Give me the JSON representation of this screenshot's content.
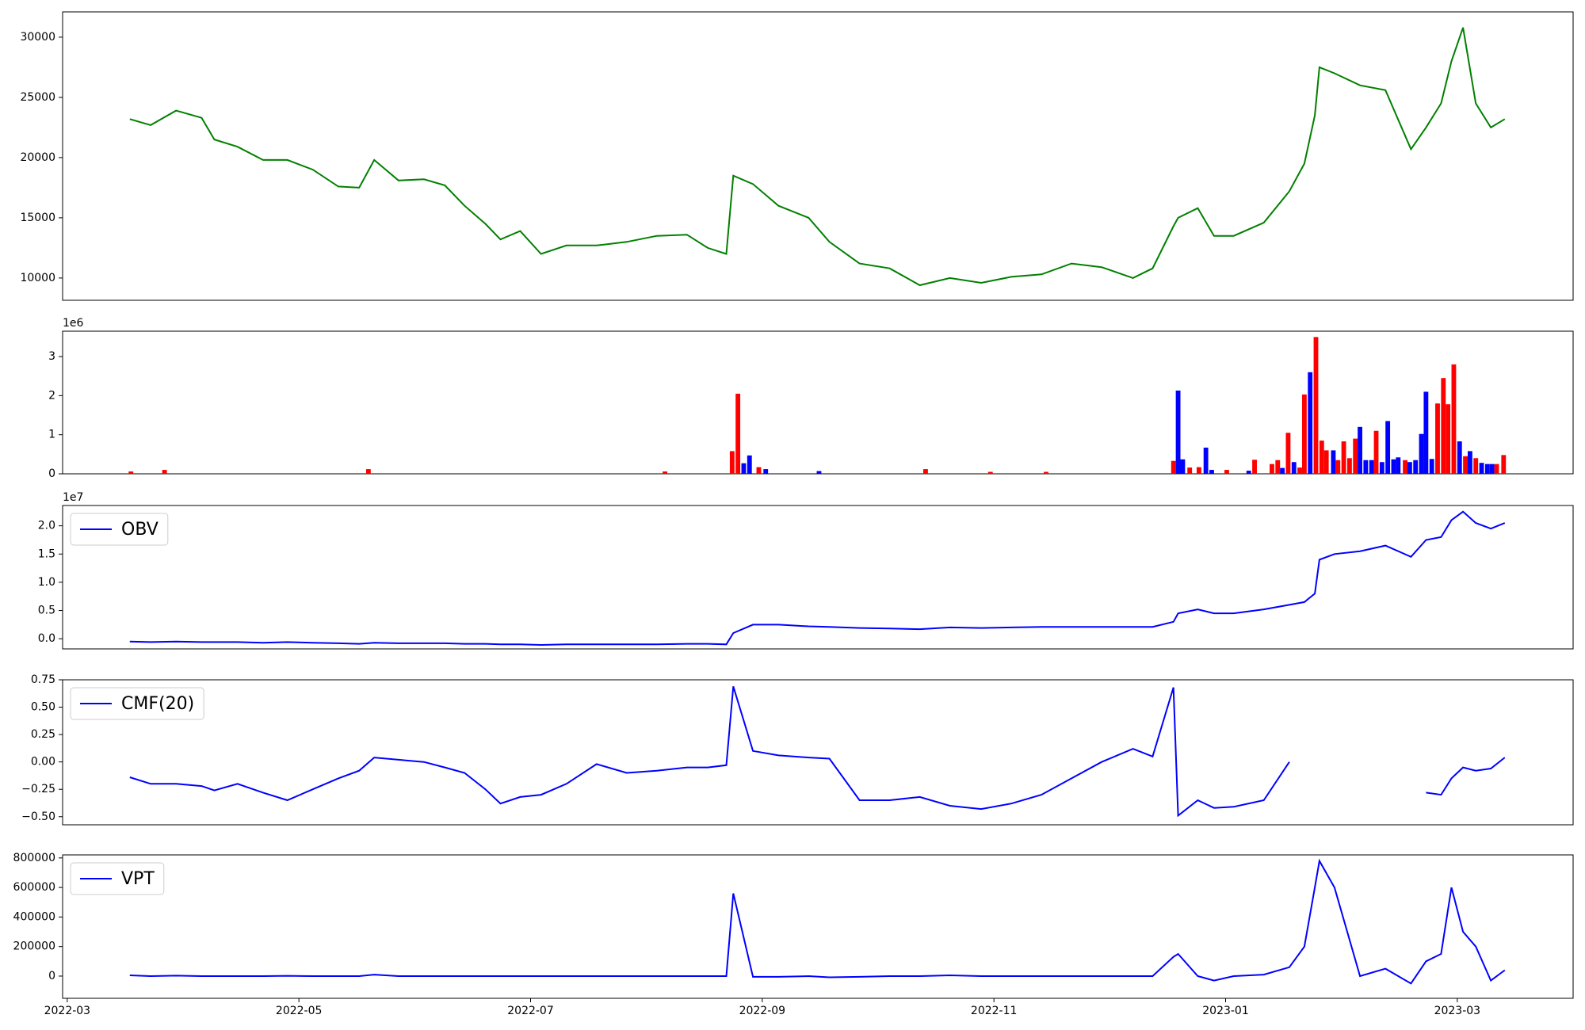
{
  "chart_data": [
    {
      "type": "line",
      "xlim": [
        -0.04,
        13.0
      ],
      "ylim": [
        8150,
        32100
      ],
      "yticks": [
        10000,
        15000,
        20000,
        25000,
        30000
      ],
      "x": [
        0.54,
        0.72,
        0.94,
        1.16,
        1.27,
        1.47,
        1.69,
        1.9,
        2.12,
        2.34,
        2.52,
        2.65,
        2.86,
        3.08,
        3.26,
        3.43,
        3.61,
        3.74,
        3.91,
        4.09,
        4.31,
        4.57,
        4.83,
        5.09,
        5.35,
        5.53,
        5.69,
        5.75,
        5.92,
        6.14,
        6.4,
        6.58,
        6.84,
        7.1,
        7.36,
        7.62,
        7.89,
        8.15,
        8.41,
        8.67,
        8.93,
        9.2,
        9.37,
        9.55,
        9.59,
        9.76,
        9.9,
        10.07,
        10.33,
        10.55,
        10.68,
        10.77,
        10.81,
        10.94,
        11.16,
        11.38,
        11.6,
        11.73,
        11.86,
        11.95,
        12.05,
        12.16,
        12.29,
        12.41
      ],
      "series": [
        {
          "color": "#008000",
          "values": [
            23200,
            22700,
            23900,
            23300,
            21500,
            20900,
            19800,
            19800,
            19000,
            17600,
            17500,
            19800,
            18100,
            18200,
            17700,
            16000,
            14500,
            13200,
            13900,
            12000,
            12700,
            12700,
            13000,
            13500,
            13600,
            12500,
            12000,
            18500,
            17800,
            16000,
            15000,
            13000,
            11200,
            10800,
            9400,
            10000,
            9600,
            10100,
            10300,
            11200,
            10900,
            10000,
            10800,
            14300,
            15000,
            15800,
            13500,
            13500,
            14600,
            17200,
            19500,
            23500,
            27500,
            27000,
            26000,
            25600,
            20700,
            22500,
            24500,
            28000,
            30800,
            24500,
            22500,
            23200
          ]
        }
      ]
    },
    {
      "type": "bar",
      "xlim": [
        -0.04,
        13.0
      ],
      "ylim": [
        0,
        3.65
      ],
      "yticks": [
        0,
        1,
        2,
        3
      ],
      "y_offset_label": "1e6",
      "x": [
        0.55,
        0.84,
        2.6,
        5.16,
        5.74,
        5.79,
        5.84,
        5.89,
        5.97,
        6.03,
        6.49,
        7.41,
        7.97,
        8.45,
        9.55,
        9.59,
        9.63,
        9.69,
        9.77,
        9.83,
        9.88,
        10.01,
        10.2,
        10.25,
        10.4,
        10.45,
        10.49,
        10.54,
        10.59,
        10.64,
        10.68,
        10.73,
        10.78,
        10.83,
        10.87,
        10.93,
        10.97,
        11.02,
        11.07,
        11.12,
        11.16,
        11.21,
        11.26,
        11.3,
        11.35,
        11.4,
        11.45,
        11.49,
        11.55,
        11.59,
        11.64,
        11.69,
        11.73,
        11.78,
        11.83,
        11.88,
        11.92,
        11.97,
        12.02,
        12.07,
        12.11,
        12.16,
        12.21,
        12.26,
        12.3,
        12.34,
        12.4
      ],
      "values": [
        0.06,
        0.1,
        0.12,
        0.06,
        0.58,
        2.05,
        0.27,
        0.47,
        0.17,
        0.12,
        0.07,
        0.12,
        0.05,
        0.05,
        0.33,
        2.13,
        0.37,
        0.16,
        0.17,
        0.67,
        0.1,
        0.1,
        0.08,
        0.36,
        0.25,
        0.35,
        0.15,
        1.05,
        0.3,
        0.16,
        2.03,
        2.6,
        3.5,
        0.85,
        0.6,
        0.6,
        0.35,
        0.83,
        0.4,
        0.9,
        1.2,
        0.35,
        0.35,
        1.1,
        0.3,
        1.35,
        0.37,
        0.42,
        0.35,
        0.3,
        0.35,
        1.02,
        2.1,
        0.38,
        1.8,
        2.45,
        1.78,
        2.8,
        0.83,
        0.45,
        0.58,
        0.4,
        0.28,
        0.25,
        0.25,
        0.25,
        0.48
      ],
      "colors": [
        "#ff0000",
        "#ff0000",
        "#ff0000",
        "#ff0000",
        "#ff0000",
        "#ff0000",
        "#0000ff",
        "#0000ff",
        "#ff0000",
        "#0000ff",
        "#0000ff",
        "#ff0000",
        "#ff0000",
        "#ff0000",
        "#ff0000",
        "#0000ff",
        "#0000ff",
        "#ff0000",
        "#ff0000",
        "#0000ff",
        "#0000ff",
        "#ff0000",
        "#0000ff",
        "#ff0000",
        "#ff0000",
        "#ff0000",
        "#0000ff",
        "#ff0000",
        "#0000ff",
        "#ff0000",
        "#ff0000",
        "#0000ff",
        "#ff0000",
        "#ff0000",
        "#ff0000",
        "#0000ff",
        "#ff0000",
        "#ff0000",
        "#ff0000",
        "#ff0000",
        "#0000ff",
        "#0000ff",
        "#0000ff",
        "#ff0000",
        "#0000ff",
        "#0000ff",
        "#0000ff",
        "#0000ff",
        "#ff0000",
        "#0000ff",
        "#0000ff",
        "#0000ff",
        "#0000ff",
        "#0000ff",
        "#ff0000",
        "#ff0000",
        "#ff0000",
        "#ff0000",
        "#0000ff",
        "#ff0000",
        "#0000ff",
        "#ff0000",
        "#0000ff",
        "#0000ff",
        "#0000ff",
        "#ff0000",
        "#ff0000"
      ]
    },
    {
      "type": "line",
      "xlim": [
        -0.04,
        13.0
      ],
      "ylim": [
        -0.18,
        2.36
      ],
      "y_offset_label": "1e7",
      "yticks": [
        {
          "value": 0,
          "label": "0.0"
        },
        0.5,
        {
          "value": 1,
          "label": "1.0"
        },
        1.5,
        {
          "value": 2,
          "label": "2.0"
        }
      ],
      "x": [
        0.54,
        0.72,
        0.94,
        1.16,
        1.27,
        1.47,
        1.69,
        1.9,
        2.12,
        2.34,
        2.52,
        2.65,
        2.86,
        3.08,
        3.26,
        3.43,
        3.61,
        3.74,
        3.91,
        4.09,
        4.31,
        4.57,
        4.83,
        5.09,
        5.35,
        5.53,
        5.69,
        5.75,
        5.92,
        6.14,
        6.4,
        6.58,
        6.84,
        7.1,
        7.36,
        7.62,
        7.89,
        8.15,
        8.41,
        8.67,
        8.93,
        9.2,
        9.37,
        9.55,
        9.59,
        9.76,
        9.9,
        10.07,
        10.33,
        10.55,
        10.68,
        10.77,
        10.81,
        10.94,
        11.16,
        11.38,
        11.6,
        11.73,
        11.86,
        11.95,
        12.05,
        12.16,
        12.29,
        12.41
      ],
      "series": [
        {
          "name": "OBV",
          "color": "#0000ff",
          "values": [
            -0.05,
            -0.06,
            -0.05,
            -0.06,
            -0.06,
            -0.06,
            -0.07,
            -0.06,
            -0.07,
            -0.08,
            -0.09,
            -0.07,
            -0.08,
            -0.08,
            -0.08,
            -0.09,
            -0.09,
            -0.1,
            -0.1,
            -0.11,
            -0.1,
            -0.1,
            -0.1,
            -0.1,
            -0.09,
            -0.09,
            -0.1,
            0.1,
            0.25,
            0.25,
            0.22,
            0.21,
            0.19,
            0.18,
            0.17,
            0.2,
            0.19,
            0.2,
            0.21,
            0.21,
            0.21,
            0.21,
            0.21,
            0.3,
            0.45,
            0.52,
            0.45,
            0.45,
            0.52,
            0.6,
            0.65,
            0.8,
            1.4,
            1.5,
            1.55,
            1.65,
            1.45,
            1.75,
            1.8,
            2.1,
            2.25,
            2.05,
            1.95,
            2.05
          ]
        }
      ]
    },
    {
      "type": "line",
      "xlim": [
        -0.04,
        13.0
      ],
      "ylim": [
        -0.574,
        0.75
      ],
      "yticks": [
        {
          "value": -0.5,
          "label": "−0.50"
        },
        {
          "value": -0.25,
          "label": "−0.25"
        },
        {
          "value": 0,
          "label": "0.00"
        },
        0.25,
        {
          "value": 0.5,
          "label": "0.50"
        },
        0.75
      ],
      "x": [
        0.54,
        0.72,
        0.94,
        1.16,
        1.27,
        1.47,
        1.69,
        1.9,
        2.12,
        2.34,
        2.52,
        2.65,
        2.86,
        3.08,
        3.26,
        3.43,
        3.61,
        3.74,
        3.91,
        4.09,
        4.31,
        4.57,
        4.83,
        5.09,
        5.35,
        5.53,
        5.69,
        5.75,
        5.92,
        6.14,
        6.4,
        6.58,
        6.84,
        7.1,
        7.36,
        7.62,
        7.89,
        8.15,
        8.41,
        8.67,
        8.93,
        9.2,
        9.37,
        9.55,
        9.59,
        9.76,
        9.9,
        10.07,
        10.33,
        10.55,
        10.68,
        10.77,
        10.81,
        10.94,
        11.16,
        11.38,
        11.6,
        11.73,
        11.86,
        11.95,
        12.05,
        12.16,
        12.29,
        12.41
      ],
      "series": [
        {
          "name": "CMF(20)",
          "color": "#0000ff",
          "values": [
            -0.14,
            -0.2,
            -0.2,
            -0.22,
            -0.26,
            -0.2,
            -0.28,
            -0.35,
            -0.25,
            -0.15,
            -0.08,
            0.04,
            0.02,
            0.0,
            -0.05,
            -0.1,
            -0.25,
            -0.38,
            -0.32,
            -0.3,
            -0.2,
            -0.02,
            -0.1,
            -0.08,
            -0.05,
            -0.05,
            -0.03,
            0.69,
            0.1,
            0.06,
            0.04,
            0.03,
            -0.35,
            -0.35,
            -0.32,
            -0.4,
            -0.43,
            -0.38,
            -0.3,
            -0.15,
            0.0,
            0.12,
            0.05,
            0.68,
            -0.49,
            -0.35,
            -0.42,
            -0.41,
            -0.35,
            0.0,
            null,
            null,
            null,
            null,
            null,
            null,
            null,
            -0.28,
            -0.3,
            -0.15,
            -0.05,
            -0.08,
            -0.06,
            0.04
          ]
        }
      ]
    },
    {
      "type": "line",
      "xlim": [
        -0.04,
        13.0
      ],
      "ylim": [
        -150400,
        820500
      ],
      "yticks": [
        0,
        200000,
        400000,
        600000,
        800000
      ],
      "xticks": [
        {
          "value": 0,
          "label": "2022-03"
        },
        {
          "value": 2,
          "label": "2022-05"
        },
        {
          "value": 4,
          "label": "2022-07"
        },
        {
          "value": 6,
          "label": "2022-09"
        },
        {
          "value": 8,
          "label": "2022-11"
        },
        {
          "value": 10,
          "label": "2023-01"
        },
        {
          "value": 12,
          "label": "2023-03"
        }
      ],
      "x": [
        0.54,
        0.72,
        0.94,
        1.16,
        1.27,
        1.47,
        1.69,
        1.9,
        2.12,
        2.34,
        2.52,
        2.65,
        2.86,
        3.08,
        3.26,
        3.43,
        3.61,
        3.74,
        3.91,
        4.09,
        4.31,
        4.57,
        4.83,
        5.09,
        5.35,
        5.53,
        5.69,
        5.75,
        5.92,
        6.14,
        6.4,
        6.58,
        6.84,
        7.1,
        7.36,
        7.62,
        7.89,
        8.15,
        8.41,
        8.67,
        8.93,
        9.2,
        9.37,
        9.55,
        9.59,
        9.76,
        9.9,
        10.07,
        10.33,
        10.55,
        10.68,
        10.77,
        10.81,
        10.94,
        11.16,
        11.38,
        11.6,
        11.73,
        11.86,
        11.95,
        12.05,
        12.16,
        12.29,
        12.41
      ],
      "series": [
        {
          "name": "VPT",
          "color": "#0000ff",
          "values": [
            5000,
            0,
            3000,
            0,
            0,
            0,
            0,
            2000,
            0,
            0,
            0,
            10000,
            0,
            0,
            0,
            0,
            0,
            0,
            0,
            0,
            0,
            0,
            0,
            0,
            0,
            0,
            0,
            560000,
            -5000,
            -5000,
            0,
            -8000,
            -5000,
            0,
            0,
            5000,
            0,
            0,
            0,
            0,
            0,
            0,
            0,
            130000,
            150000,
            0,
            -30000,
            0,
            10000,
            60000,
            200000,
            600000,
            780000,
            600000,
            0,
            50000,
            -50000,
            100000,
            150000,
            600000,
            300000,
            200000,
            -30000,
            40000
          ]
        }
      ]
    }
  ]
}
